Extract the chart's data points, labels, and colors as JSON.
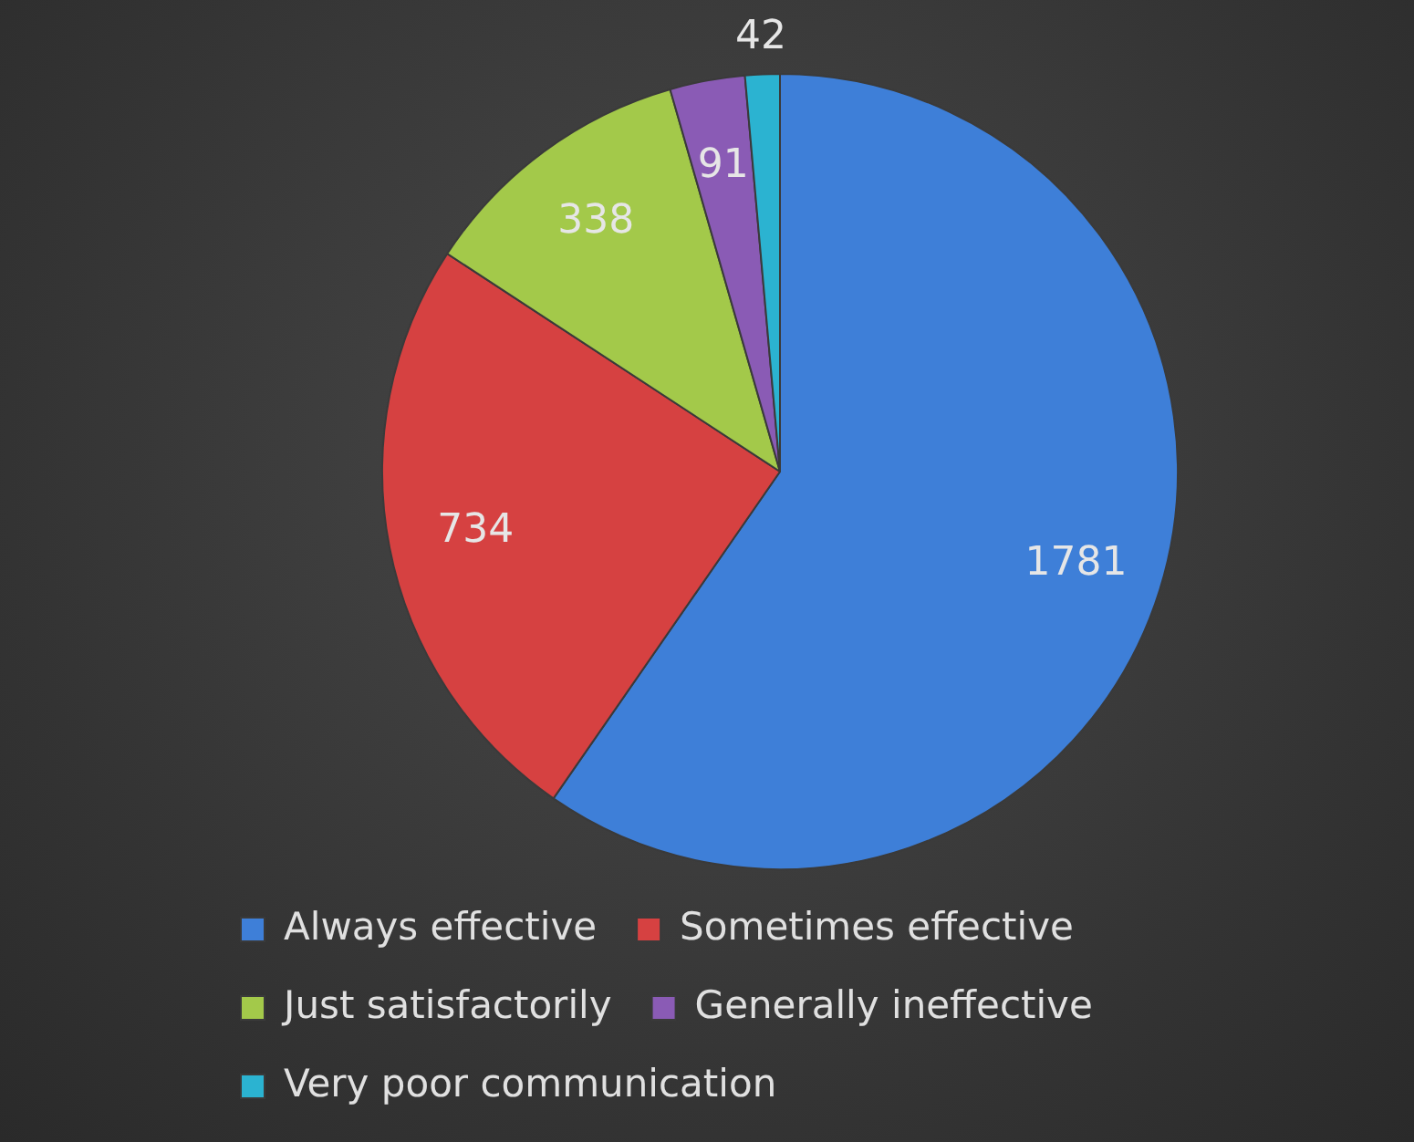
{
  "chart_data": {
    "type": "pie",
    "categories": [
      "Always effective",
      "Sometimes effective",
      "Just satisfactorily",
      "Generally ineffective",
      "Very poor communication"
    ],
    "values": [
      1781,
      734,
      338,
      91,
      42
    ],
    "colors": [
      "#3e7fd8",
      "#d64141",
      "#a3c94a",
      "#8a5bb5",
      "#2bb3d1"
    ],
    "data_labels": true,
    "legend": "bottom"
  }
}
